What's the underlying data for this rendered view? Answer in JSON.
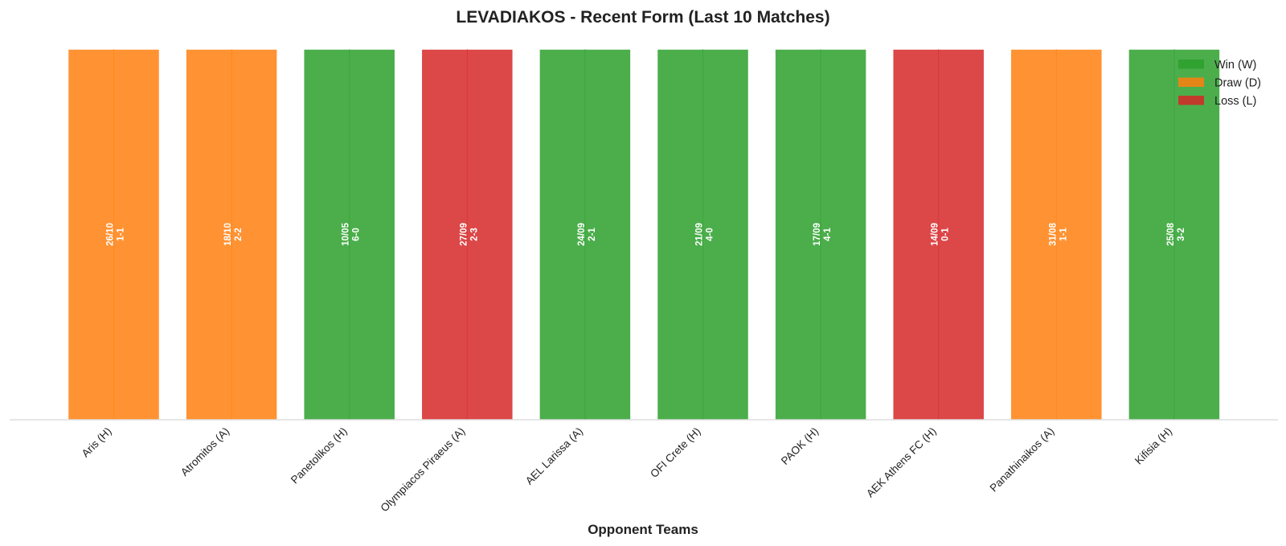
{
  "chart_data": {
    "type": "bar",
    "title": "LEVADIAKOS - Recent Form (Last 10 Matches)",
    "xlabel": "Opponent Teams",
    "ylabel": "",
    "grid": false,
    "legend_position": "top-right",
    "categories": [
      "Aris (H)",
      "Atromitos (A)",
      "Panetolikos (H)",
      "Olympiacos Piraeus (A)",
      "AEL Larissa (A)",
      "OFI Crete (H)",
      "PAOK (H)",
      "AEK Athens FC (H)",
      "Panathinaikos (A)",
      "Kifisia (H)"
    ],
    "values": [
      1,
      1,
      1,
      1,
      1,
      1,
      1,
      1,
      1,
      1
    ],
    "results": [
      "D",
      "D",
      "W",
      "L",
      "W",
      "W",
      "W",
      "L",
      "D",
      "W"
    ],
    "dates": [
      "26/10",
      "18/10",
      "10/05",
      "27/09",
      "24/09",
      "21/09",
      "17/09",
      "14/09",
      "31/08",
      "25/08"
    ],
    "scores": [
      "1-1",
      "2-2",
      "6-0",
      "2-3",
      "2-1",
      "4-0",
      "4-1",
      "0-1",
      "1-1",
      "3-2"
    ],
    "legend": [
      {
        "key": "W",
        "label": "Win (W)",
        "color": "#2ca02c"
      },
      {
        "key": "D",
        "label": "Draw (D)",
        "color": "#ff7f0e"
      },
      {
        "key": "L",
        "label": "Loss (L)",
        "color": "#d62728"
      }
    ],
    "bar_opacity": 0.85
  }
}
